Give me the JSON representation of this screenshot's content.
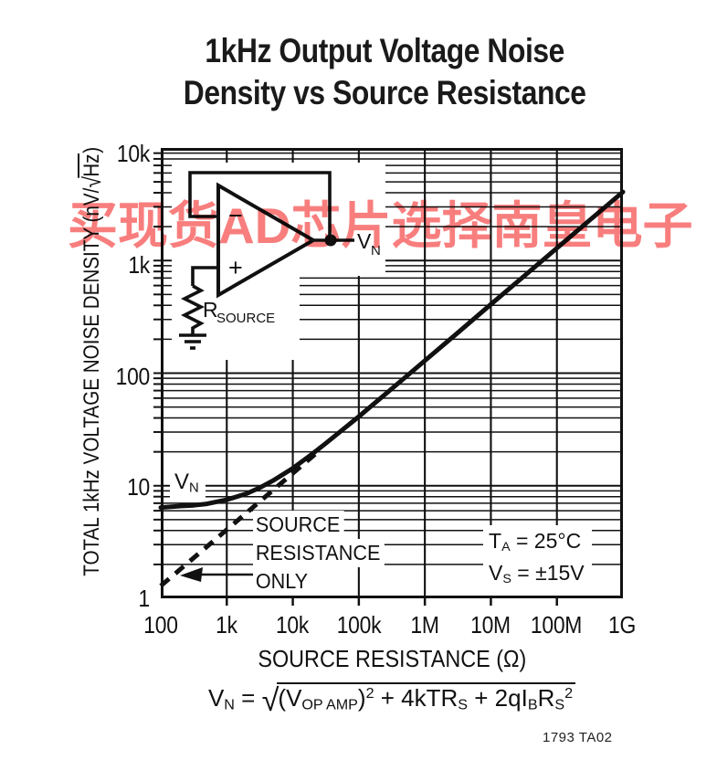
{
  "title": {
    "line1": "1kHz Output Voltage Noise",
    "line2": "Density vs Source Resistance"
  },
  "watermark": {
    "text": "买现货AD芯片选择南皇电子",
    "color": "#f87e7e"
  },
  "chart_data": {
    "type": "line",
    "title": "1kHz Output Voltage Noise Density vs Source Resistance",
    "xlabel": "SOURCE RESISTANCE (Ω)",
    "ylabel": "TOTAL 1kHz VOLTAGE NOISE DENSITY (nV/√Hz)",
    "x_scale": "log",
    "y_scale": "log",
    "xlim": [
      100,
      1000000000
    ],
    "ylim": [
      1,
      10000
    ],
    "x_tick_labels": [
      "100",
      "1k",
      "10k",
      "100k",
      "1M",
      "10M",
      "100M",
      "1G"
    ],
    "y_tick_labels": [
      "10k",
      "1k",
      "100",
      "10",
      "1"
    ],
    "grid": "full log grid: horizontal minor lines 2-9 each decade, vertical lines at decades only",
    "legend_position": "none",
    "series": [
      {
        "name": "VN total output voltage noise",
        "style": "solid",
        "points_ohms_nv": [
          [
            100,
            6.4
          ],
          [
            200,
            6.6
          ],
          [
            316,
            6.7
          ],
          [
            500,
            6.9
          ],
          [
            1000,
            7.5
          ],
          [
            2000,
            8.5
          ],
          [
            3160,
            9.6
          ],
          [
            5000,
            11.1
          ],
          [
            10000,
            14.3
          ],
          [
            20000,
            19.3
          ],
          [
            31600,
            23.8
          ],
          [
            100000,
            41.2
          ],
          [
            316000,
            72.8
          ],
          [
            1000000,
            129
          ],
          [
            3160000,
            229
          ],
          [
            10000000,
            408
          ],
          [
            31600000,
            725
          ],
          [
            100000000,
            1290
          ],
          [
            316000000,
            2290
          ],
          [
            1000000000,
            4074
          ]
        ]
      },
      {
        "name": "SOURCE RESISTANCE ONLY (thermal noise of RS)",
        "style": "dashed",
        "points_ohms_nv": [
          [
            100,
            1.29
          ],
          [
            316,
            2.29
          ],
          [
            1000,
            4.07
          ],
          [
            3160,
            7.25
          ],
          [
            10000,
            12.9
          ],
          [
            25000,
            20.4
          ]
        ]
      }
    ],
    "curve_label": {
      "main": "V",
      "sub": "N"
    },
    "dashed_label_lines": [
      "SOURCE",
      "RESISTANCE",
      "ONLY"
    ],
    "conditions": {
      "t_main": "T",
      "t_sub": "A",
      "t_rest": " = 25°C",
      "v_main": "V",
      "v_sub": "S",
      "v_rest": " = ±15V"
    },
    "ylabel_parts": {
      "prefix": "TOTAL 1kHz VOLTAGE NOISE DENSITY (nV/",
      "radical": "√",
      "arg": "Hz",
      "close": ")"
    }
  },
  "circuit": {
    "opamp_minus": "−",
    "opamp_plus": "+",
    "out_main": "V",
    "out_sub": "N",
    "res_main": "R",
    "res_sub": "SOURCE"
  },
  "formula": {
    "parts": [
      "V",
      "N",
      " = ",
      "√",
      "(V",
      "OP AMP",
      ")",
      "2",
      " + 4kTR",
      "S",
      " + 2qI",
      "B",
      "R",
      "S",
      "2"
    ]
  },
  "footer": {
    "code": "1793 TA02"
  }
}
